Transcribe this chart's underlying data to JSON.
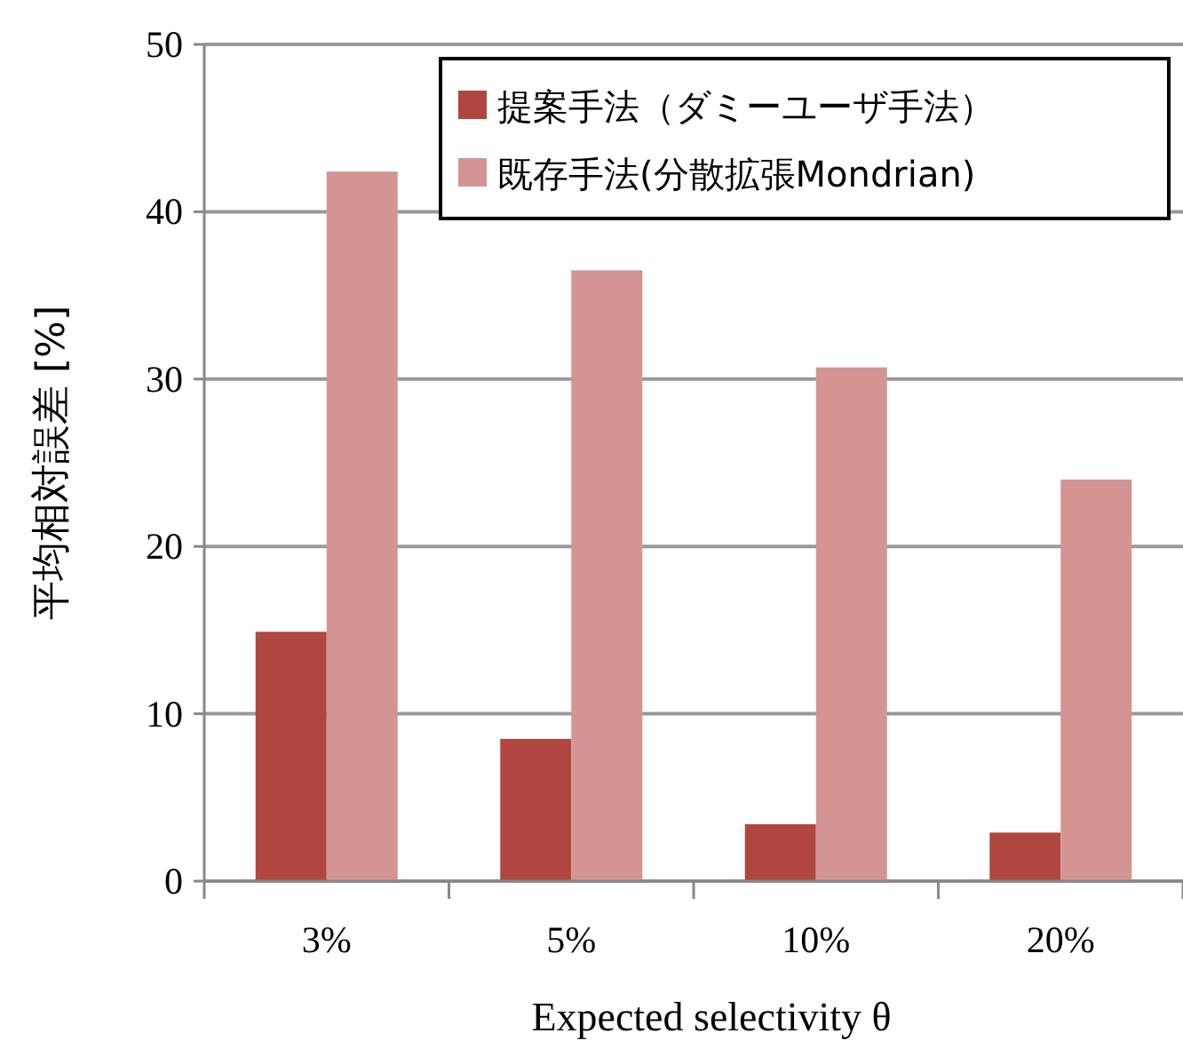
{
  "chart_data": {
    "type": "bar",
    "categories": [
      "3%",
      "5%",
      "10%",
      "20%"
    ],
    "series": [
      {
        "name": "提案手法（ダミーユーザ手法）",
        "color": "#b0463f",
        "values": [
          14.9,
          8.5,
          3.4,
          2.9
        ]
      },
      {
        "name": "既存手法(分散拡張Mondrian)",
        "color": "#d49494",
        "values": [
          42.4,
          36.5,
          30.7,
          24.0
        ]
      }
    ],
    "xlabel": "Expected selectivity  θ",
    "ylabel": "平均相対誤差 [%]",
    "ylim": [
      0,
      50
    ],
    "yticks": [
      0,
      10,
      20,
      30,
      40,
      50
    ],
    "grid": "y",
    "legend": "top right"
  }
}
